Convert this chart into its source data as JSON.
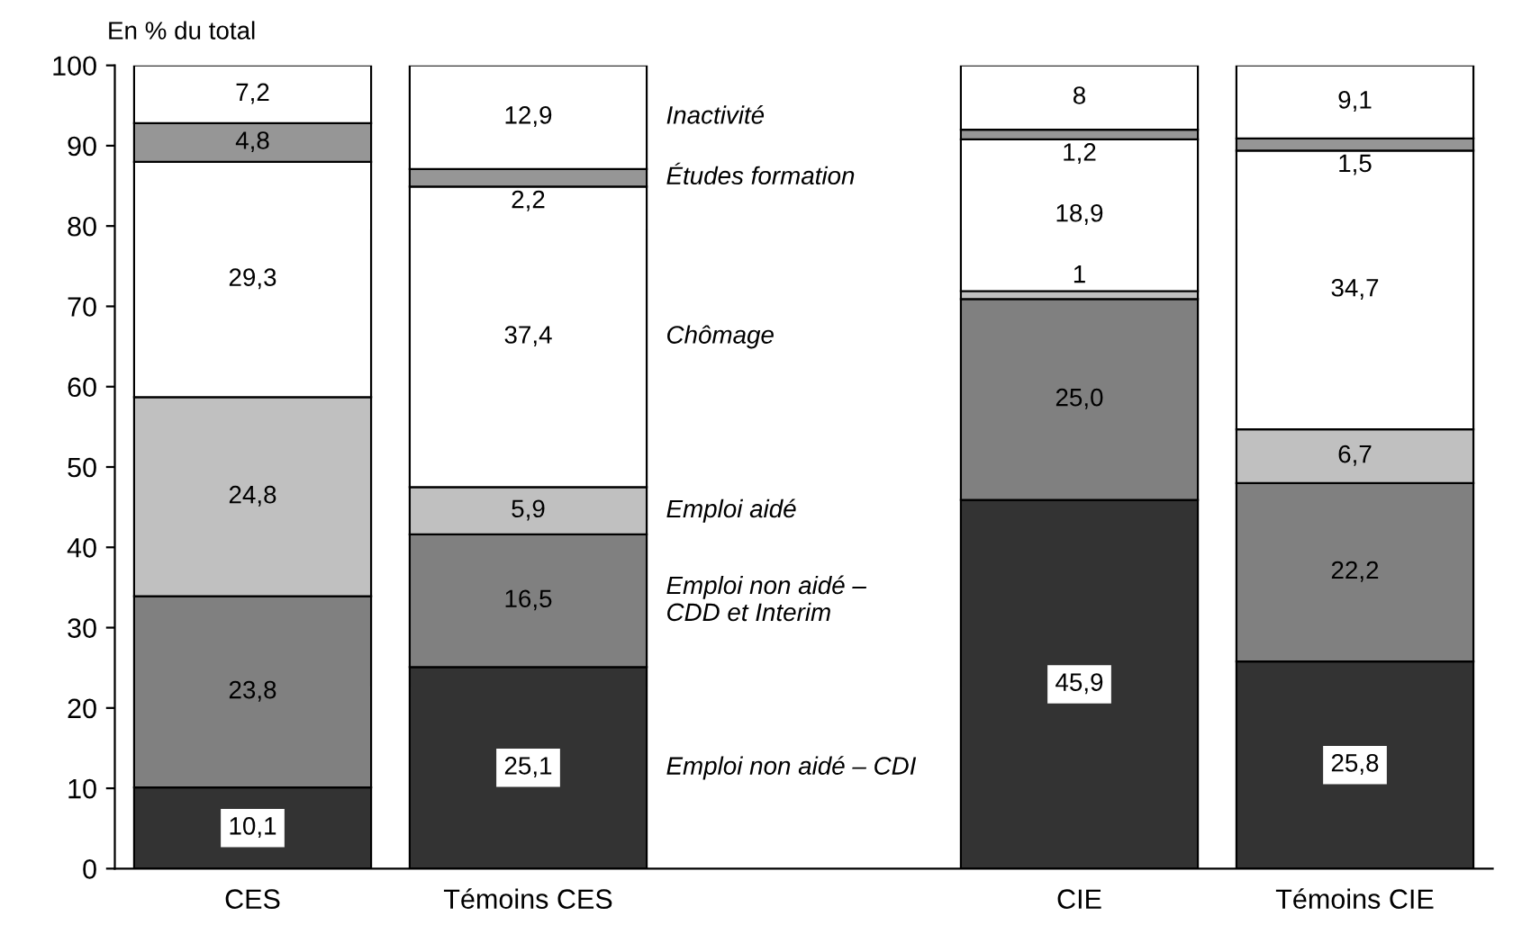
{
  "chart_data": {
    "type": "bar",
    "stacked": true,
    "ylabel": "En % du total",
    "categories": [
      "CES",
      "Témoins CES",
      null,
      "CIE",
      "Témoins CIE"
    ],
    "series": [
      {
        "name": "Emploi non aidé – CDI",
        "color": "#333333",
        "values": [
          10.1,
          25.1,
          null,
          45.9,
          25.8
        ],
        "value_labels": [
          "10,1",
          "25,1",
          null,
          "45,9",
          "25,8"
        ]
      },
      {
        "name": "Emploi non aidé –\nCDD et Interim",
        "color": "#808080",
        "values": [
          23.8,
          16.5,
          null,
          25.0,
          22.2
        ],
        "value_labels": [
          "23,8",
          "16,5",
          null,
          "25,0",
          "22,2"
        ]
      },
      {
        "name": "Emploi aidé",
        "color": "#c0c0c0",
        "values": [
          24.8,
          5.9,
          null,
          1,
          6.7
        ],
        "value_labels": [
          "24,8",
          "5,9",
          null,
          "1",
          "6,7"
        ]
      },
      {
        "name": "Chômage",
        "color": "#ffffff",
        "values": [
          29.3,
          37.4,
          null,
          18.9,
          34.7
        ],
        "value_labels": [
          "29,3",
          "37,4",
          null,
          "18,9",
          "34,7"
        ]
      },
      {
        "name": "Études formation",
        "color": "#969696",
        "values": [
          4.8,
          2.2,
          null,
          1.2,
          1.5
        ],
        "value_labels": [
          "4,8",
          "2,2",
          null,
          "1,2",
          "1,5"
        ]
      },
      {
        "name": "Inactivité",
        "color": "#ffffff",
        "values": [
          7.2,
          12.9,
          null,
          8,
          9.1
        ],
        "value_labels": [
          "7,2",
          "12,9",
          null,
          "8",
          "9,1"
        ]
      }
    ],
    "ylim": [
      0,
      100
    ],
    "yticks": [
      0,
      10,
      20,
      30,
      40,
      50,
      60,
      70,
      80,
      90,
      100
    ],
    "grid": false,
    "legend": false
  }
}
